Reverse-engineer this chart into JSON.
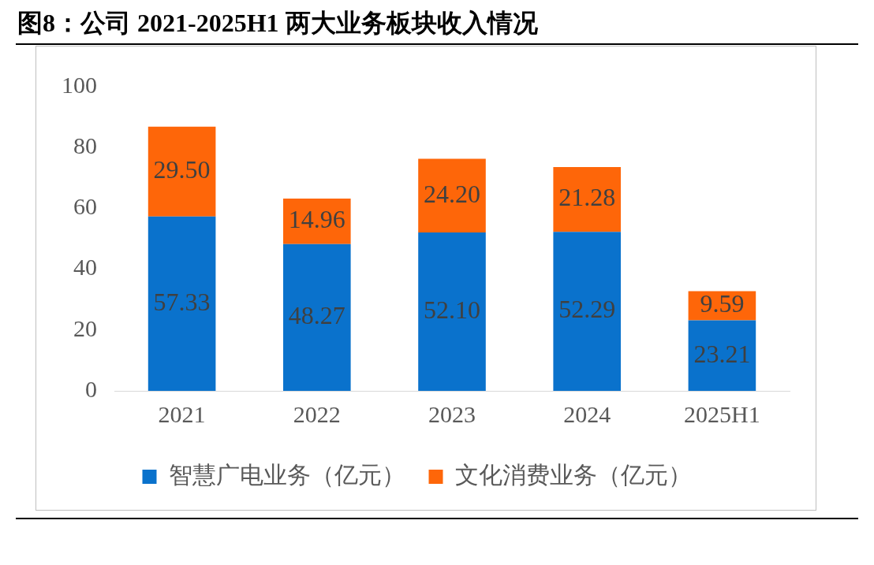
{
  "chart_data": {
    "type": "bar",
    "title": "图8：公司 2021-2025H1 两大业务板块收入情况",
    "categories": [
      "2021",
      "2022",
      "2023",
      "2024",
      "2025H1"
    ],
    "series": [
      {
        "name": "智慧广电业务（亿元）",
        "color": "#0a72cc",
        "values": [
          57.33,
          48.27,
          52.1,
          52.29,
          23.21
        ]
      },
      {
        "name": "文化消费业务（亿元）",
        "color": "#fe6609",
        "values": [
          29.5,
          14.96,
          24.2,
          21.28,
          9.59
        ]
      }
    ],
    "value_labels": [
      [
        "57.33",
        "48.27",
        "52.10",
        "52.29",
        "23.21"
      ],
      [
        "29.50",
        "14.96",
        "24.20",
        "21.28",
        "9.59"
      ]
    ],
    "stacked": true,
    "ylim": [
      0,
      100
    ],
    "yticks": [
      0,
      20,
      40,
      60,
      80,
      100
    ],
    "grid": false,
    "legend": "bottom"
  }
}
